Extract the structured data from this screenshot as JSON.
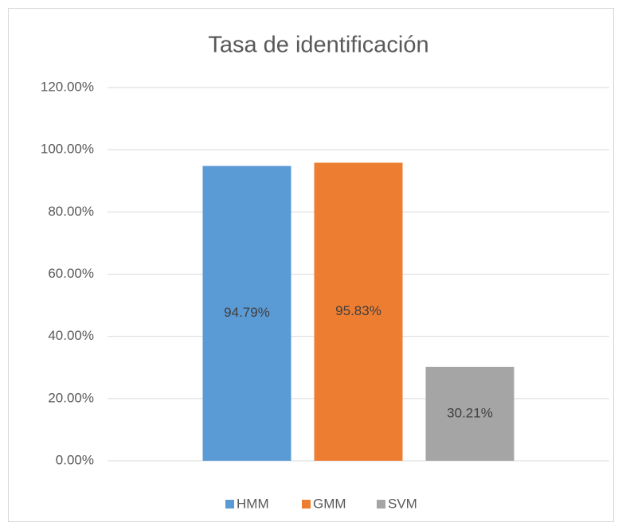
{
  "chart_data": {
    "type": "bar",
    "title": "Tasa de identificación",
    "categories": [
      null
    ],
    "series": [
      {
        "name": "HMM",
        "color": "#5b9bd5",
        "values": [
          94.79
        ],
        "value_labels": [
          "94.79%"
        ]
      },
      {
        "name": "GMM",
        "color": "#ed7d31",
        "values": [
          95.83
        ],
        "value_labels": [
          "95.83%"
        ]
      },
      {
        "name": "SVM",
        "color": "#a5a5a5",
        "values": [
          30.21
        ],
        "value_labels": [
          "30.21%"
        ]
      }
    ],
    "ylim": [
      0,
      120
    ],
    "yticks": [
      {
        "value": 0,
        "label": "0.00%"
      },
      {
        "value": 20,
        "label": "20.00%"
      },
      {
        "value": 40,
        "label": "40.00%"
      },
      {
        "value": 60,
        "label": "60.00%"
      },
      {
        "value": 80,
        "label": "80.00%"
      },
      {
        "value": 100,
        "label": "100.00%"
      },
      {
        "value": 120,
        "label": "120.00%"
      }
    ],
    "grid": true,
    "legend": "bottom"
  }
}
